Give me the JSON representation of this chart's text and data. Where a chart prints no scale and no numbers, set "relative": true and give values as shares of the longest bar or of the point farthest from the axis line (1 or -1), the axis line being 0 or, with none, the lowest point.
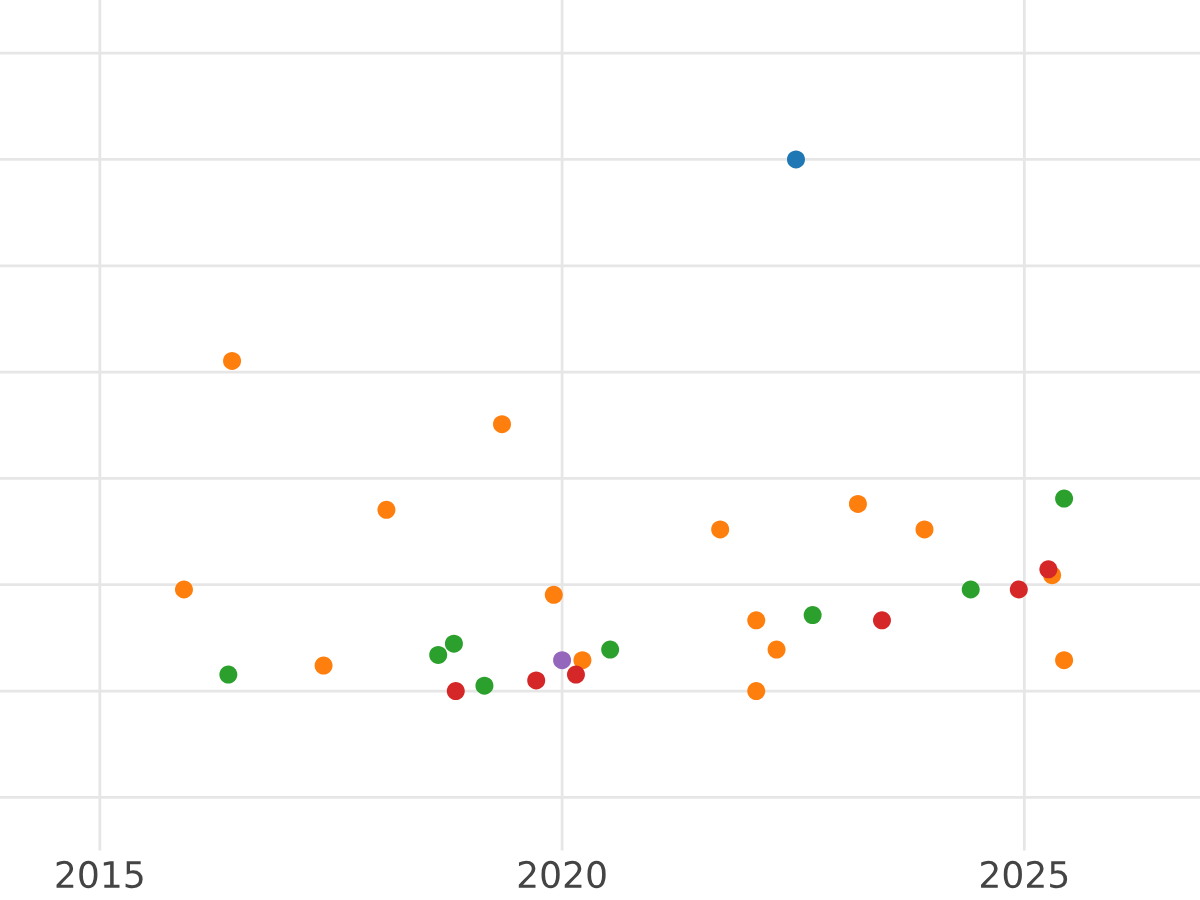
{
  "chart_data": {
    "type": "scatter",
    "relative": true,
    "grid": true,
    "marker": "circle",
    "tick_labels": "x",
    "xlim": [
      2013.92,
      2026.9
    ],
    "xticks": [
      2015,
      2020,
      2025
    ],
    "series": [
      {
        "color": "#1f77b4",
        "x": [
          2022.53
        ],
        "values": [
          1.0
        ]
      },
      {
        "color": "#ff7f0e",
        "x": [
          2016.43,
          2015.91,
          2017.42,
          2018.1,
          2019.35,
          2019.91,
          2020.22,
          2021.71,
          2022.1,
          2022.32,
          2022.1,
          2023.2,
          2023.92,
          2025.3,
          2025.43
        ],
        "values": [
          0.621,
          0.191,
          0.048,
          0.341,
          0.502,
          0.181,
          0.058,
          0.304,
          0.133,
          0.078,
          0.0,
          0.352,
          0.304,
          0.218,
          0.058
        ]
      },
      {
        "color": "#2ca02c",
        "x": [
          2016.39,
          2018.66,
          2018.83,
          2019.16,
          2020.52,
          2022.71,
          2024.42,
          2025.43
        ],
        "values": [
          0.031,
          0.068,
          0.089,
          0.01,
          0.078,
          0.143,
          0.191,
          0.362
        ]
      },
      {
        "color": "#d62728",
        "x": [
          2018.85,
          2019.72,
          2020.15,
          2023.46,
          2024.94,
          2025.26
        ],
        "values": [
          0.0,
          0.02,
          0.031,
          0.133,
          0.191,
          0.229
        ]
      },
      {
        "color": "#9467bd",
        "x": [
          2020.0
        ],
        "values": [
          0.058
        ]
      }
    ]
  }
}
